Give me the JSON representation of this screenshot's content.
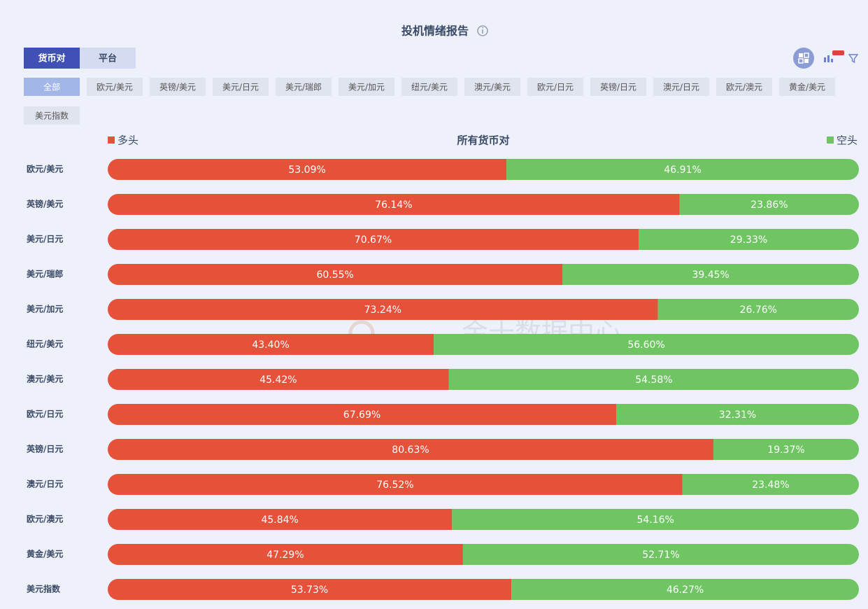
{
  "page": {
    "title": "投机情绪报告",
    "tabs": [
      "货币对",
      "平台"
    ],
    "active_tab": 0,
    "filters": [
      "全部",
      "欧元/美元",
      "英镑/美元",
      "美元/日元",
      "美元/瑞郎",
      "美元/加元",
      "纽元/美元",
      "澳元/美元",
      "欧元/日元",
      "英镑/日元",
      "澳元/日元",
      "欧元/澳元",
      "黄金/美元",
      "美元指数"
    ],
    "active_filter": 0,
    "watermark": "金十数据中心"
  },
  "chart_data": {
    "type": "stacked-bar",
    "orientation": "horizontal",
    "title": "所有货币对",
    "categories": [
      "欧元/美元",
      "英镑/美元",
      "美元/日元",
      "美元/瑞郎",
      "美元/加元",
      "纽元/美元",
      "澳元/美元",
      "欧元/日元",
      "英镑/日元",
      "澳元/日元",
      "欧元/澳元",
      "黄金/美元",
      "美元指数"
    ],
    "xlim": [
      0,
      100
    ],
    "series": [
      {
        "name": "多头",
        "color": "#e6513a",
        "legend": "left",
        "values": [
          53.09,
          76.14,
          70.67,
          60.55,
          73.24,
          43.4,
          45.42,
          67.69,
          80.63,
          76.52,
          45.84,
          47.29,
          53.73
        ],
        "value_labels": [
          "53.09%",
          "76.14%",
          "70.67%",
          "60.55%",
          "73.24%",
          "43.40%",
          "45.42%",
          "67.69%",
          "80.63%",
          "76.52%",
          "45.84%",
          "47.29%",
          "53.73%"
        ]
      },
      {
        "name": "空头",
        "color": "#6fc562",
        "legend": "right",
        "values": [
          46.91,
          23.86,
          29.33,
          39.45,
          26.76,
          56.6,
          54.58,
          32.31,
          19.37,
          23.48,
          54.16,
          52.71,
          46.27
        ],
        "value_labels": [
          "46.91%",
          "23.86%",
          "29.33%",
          "39.45%",
          "26.76%",
          "56.60%",
          "54.58%",
          "32.31%",
          "19.37%",
          "23.48%",
          "54.16%",
          "52.71%",
          "46.27%"
        ]
      }
    ]
  }
}
